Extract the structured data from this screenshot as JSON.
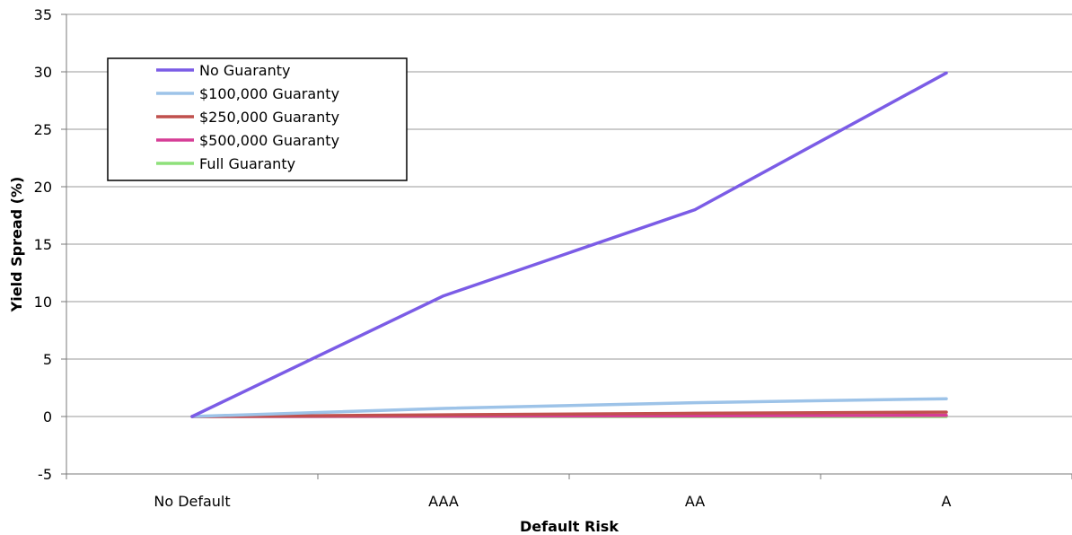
{
  "chart_data": {
    "type": "line",
    "title": "",
    "xlabel": "Default Risk",
    "ylabel": "Yield Spread (%)",
    "ylim": [
      -5,
      35
    ],
    "yticks": [
      -5,
      0,
      5,
      10,
      15,
      20,
      25,
      30,
      35
    ],
    "grid": true,
    "legend_position": "top-left",
    "categories": [
      "No Default",
      "AAA",
      "AA",
      "A"
    ],
    "series": [
      {
        "name": "No Guaranty",
        "color": "#7b5ce6",
        "values": [
          0,
          10.5,
          18.0,
          29.9
        ]
      },
      {
        "name": "$100,000 Guaranty",
        "color": "#9dc3e8",
        "values": [
          0,
          0.7,
          1.2,
          1.55
        ]
      },
      {
        "name": "$250,000 Guaranty",
        "color": "#c0504d",
        "values": [
          0,
          0.15,
          0.28,
          0.38
        ]
      },
      {
        "name": "$500,000 Guaranty",
        "color": "#d63d96",
        "values": [
          0,
          0.03,
          0.06,
          0.1
        ]
      },
      {
        "name": "Full Guaranty",
        "color": "#8ee07a",
        "values": [
          0,
          0,
          0,
          0
        ]
      }
    ]
  }
}
